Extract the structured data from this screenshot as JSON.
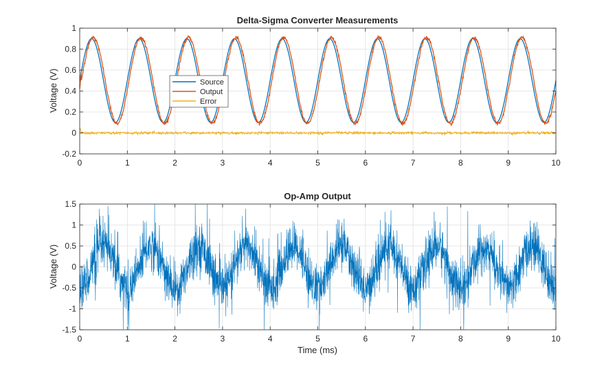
{
  "chart_data": [
    {
      "type": "line",
      "title": "Delta-Sigma Converter Measurements",
      "xlabel": "",
      "ylabel": "Voltage (V)",
      "xlim": [
        0,
        10
      ],
      "ylim": [
        -0.2,
        1
      ],
      "xticks": [
        0,
        1,
        2,
        3,
        4,
        5,
        6,
        7,
        8,
        9,
        10
      ],
      "yticks": [
        -0.2,
        0,
        0.2,
        0.4,
        0.6,
        0.8,
        1
      ],
      "xtick_labels": [
        "0",
        "1",
        "2",
        "3",
        "4",
        "5",
        "6",
        "7",
        "8",
        "9",
        "10"
      ],
      "ytick_labels": [
        "-0.2",
        "0",
        "0.2",
        "0.4",
        "0.6",
        "0.8",
        "1"
      ],
      "grid": true,
      "legend": "upper-center-left",
      "series": [
        {
          "name": "Source",
          "color": "#0072BD",
          "description": "sine 0.5 + 0.4*sin(2*pi*t), 1 kHz",
          "offset": 0.5,
          "amplitude": 0.4,
          "frequency_per_ms": 1.0
        },
        {
          "name": "Output",
          "color": "#D95319",
          "description": "tracks source with small lag and ripple",
          "offset": 0.5,
          "amplitude": 0.41,
          "frequency_per_ms": 1.0
        },
        {
          "name": "Error",
          "color": "#EDB120",
          "description": "noise around 0, initial spike to ~0.05",
          "offset": 0.0,
          "amplitude": 0.01
        }
      ]
    },
    {
      "type": "line",
      "title": "Op-Amp Output",
      "xlabel": "Time (ms)",
      "ylabel": "Voltage (V)",
      "xlim": [
        0,
        10
      ],
      "ylim": [
        -1.5,
        1.5
      ],
      "xticks": [
        0,
        1,
        2,
        3,
        4,
        5,
        6,
        7,
        8,
        9,
        10
      ],
      "yticks": [
        -1.5,
        -1,
        -0.5,
        0,
        0.5,
        1,
        1.5
      ],
      "xtick_labels": [
        "0",
        "1",
        "2",
        "3",
        "4",
        "5",
        "6",
        "7",
        "8",
        "9",
        "10"
      ],
      "ytick_labels": [
        "-1.5",
        "-1",
        "-0.5",
        "0",
        "0.5",
        "1",
        "1.5"
      ],
      "grid": true,
      "series": [
        {
          "name": "",
          "color": "#0072BD",
          "description": "noisy ~1 kHz signal, amplitude ~0.5 V with dense high-frequency noise",
          "offset": 0.0,
          "amplitude": 0.5,
          "frequency_per_ms": 1.0
        }
      ]
    }
  ]
}
